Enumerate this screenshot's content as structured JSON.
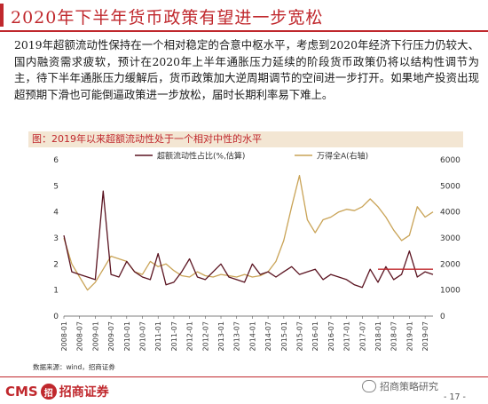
{
  "header": {
    "title": "2020年下半年货币政策有望进一步宽松"
  },
  "body": {
    "paragraph": "2019年超额流动性保持在一个相对稳定的合意中枢水平，考虑到2020年经济下行压力仍较大、国内融资需求疲软，预计在2020年上半年通胀压力延续的阶段货币政策仍将以结构性调节为主，待下半年通胀压力缓解后，货币政策加大逆周期调节的空间进一步打开。如果地产投资出现超预期下滑也可能倒逼政策进一步放松，届时长期利率易下难上。"
  },
  "chart_data": {
    "type": "line",
    "title": "图：2019年以来超额流动性处于一个相对中性的水平",
    "x": [
      "2008-01",
      "2008-04",
      "2008-07",
      "2008-10",
      "2009-01",
      "2009-04",
      "2009-07",
      "2009-10",
      "2010-01",
      "2010-04",
      "2010-07",
      "2010-10",
      "2011-01",
      "2011-04",
      "2011-07",
      "2011-10",
      "2012-01",
      "2012-04",
      "2012-07",
      "2012-10",
      "2013-01",
      "2013-04",
      "2013-07",
      "2013-10",
      "2014-01",
      "2014-04",
      "2014-07",
      "2014-10",
      "2015-01",
      "2015-04",
      "2015-07",
      "2015-10",
      "2016-01",
      "2016-04",
      "2016-07",
      "2016-10",
      "2017-01",
      "2017-04",
      "2017-07",
      "2017-10",
      "2018-01",
      "2018-04",
      "2018-07",
      "2018-10",
      "2019-01",
      "2019-04",
      "2019-07",
      "2019-10"
    ],
    "x_ticks": [
      "2008-01",
      "2008-07",
      "2009-01",
      "2009-07",
      "2010-01",
      "2010-07",
      "2011-01",
      "2011-07",
      "2012-01",
      "2012-07",
      "2013-01",
      "2013-07",
      "2014-01",
      "2014-07",
      "2015-01",
      "2015-07",
      "2016-01",
      "2016-07",
      "2017-01",
      "2017-07",
      "2018-01",
      "2018-07",
      "2019-01",
      "2019-07"
    ],
    "y_left": {
      "lim": [
        0,
        6
      ],
      "ticks": [
        "0",
        "1",
        "2",
        "3",
        "4",
        "5",
        "6"
      ]
    },
    "y_right": {
      "lim": [
        0,
        6000
      ],
      "ticks": [
        "0",
        "1000",
        "2000",
        "3000",
        "4000",
        "5000",
        "6000"
      ]
    },
    "series": [
      {
        "name": "超额流动性占比(%,估算)",
        "color": "#5a1320",
        "axis": "left",
        "values": [
          3.1,
          1.7,
          1.6,
          1.5,
          1.4,
          4.8,
          1.6,
          1.5,
          2.1,
          1.7,
          1.5,
          1.4,
          2.4,
          1.2,
          1.3,
          1.7,
          2.2,
          1.5,
          1.4,
          1.7,
          2.0,
          1.5,
          1.4,
          1.3,
          2.0,
          1.6,
          1.7,
          1.5,
          1.7,
          1.9,
          1.6,
          1.7,
          1.8,
          1.4,
          1.6,
          1.5,
          1.4,
          1.2,
          1.1,
          1.8,
          1.3,
          1.9,
          1.4,
          1.6,
          2.5,
          1.5,
          1.7,
          1.6
        ]
      },
      {
        "name": "万得全A(右轴)",
        "color": "#c9a356",
        "axis": "right",
        "values": [
          3000,
          2000,
          1500,
          1000,
          1300,
          1800,
          2300,
          2200,
          2100,
          1700,
          1600,
          2100,
          1900,
          2000,
          1750,
          1550,
          1500,
          1700,
          1550,
          1500,
          1600,
          1550,
          1500,
          1600,
          1500,
          1550,
          1700,
          2100,
          2900,
          4200,
          5400,
          3700,
          3200,
          3700,
          3800,
          4000,
          4100,
          4050,
          4200,
          4500,
          4200,
          3800,
          3300,
          2900,
          3100,
          4200,
          3800,
          4000
        ]
      }
    ],
    "ref_line": {
      "value": 1.8,
      "color": "#c0282d",
      "from": "2018-01",
      "to": "2019-10"
    },
    "legend_position": "top",
    "grid": false
  },
  "source_note": "数据来源：wind，招商证券",
  "footer": {
    "logo_cms": "CMS",
    "logo_badge": "招",
    "logo_name": "招商证券",
    "wechat_name": "招商策略研究",
    "page": "- 17 -"
  }
}
